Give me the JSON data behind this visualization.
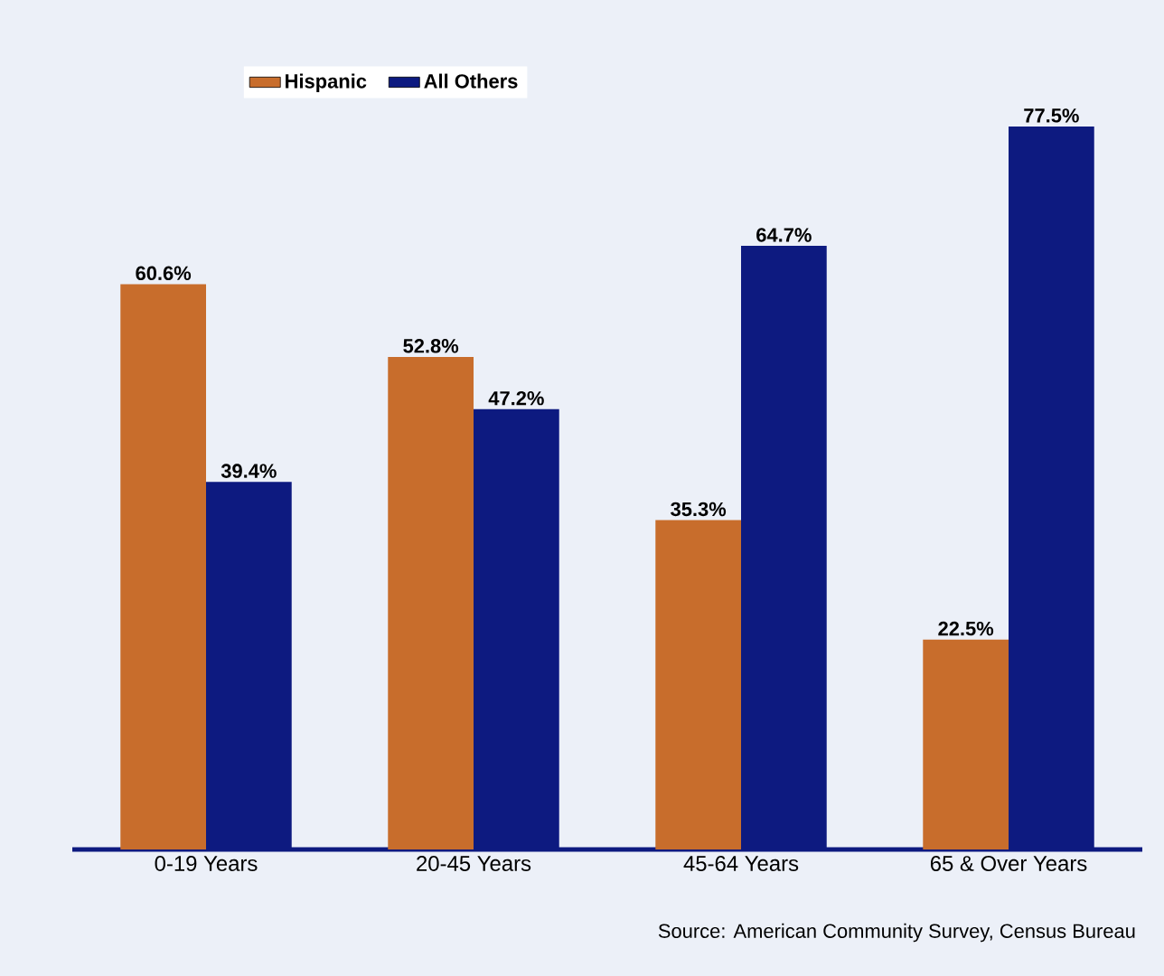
{
  "chart_data": {
    "type": "bar",
    "categories": [
      "0-19 Years",
      "20-45 Years",
      "45-64 Years",
      "65 & Over Years"
    ],
    "series": [
      {
        "name": "Hispanic",
        "color": "#c86d2c",
        "values": [
          60.6,
          52.8,
          35.3,
          22.5
        ],
        "value_labels": [
          "60.6%",
          "52.8%",
          "35.3%",
          "22.5%"
        ]
      },
      {
        "name": "All Others",
        "color": "#0d1a80",
        "values": [
          39.4,
          47.2,
          64.7,
          77.5
        ],
        "value_labels": [
          "39.4%",
          "47.2%",
          "64.7%",
          "77.5%"
        ]
      }
    ],
    "legend": "top left",
    "annotations": [
      "Source:  American Community Survey, Census Bureau"
    ]
  }
}
